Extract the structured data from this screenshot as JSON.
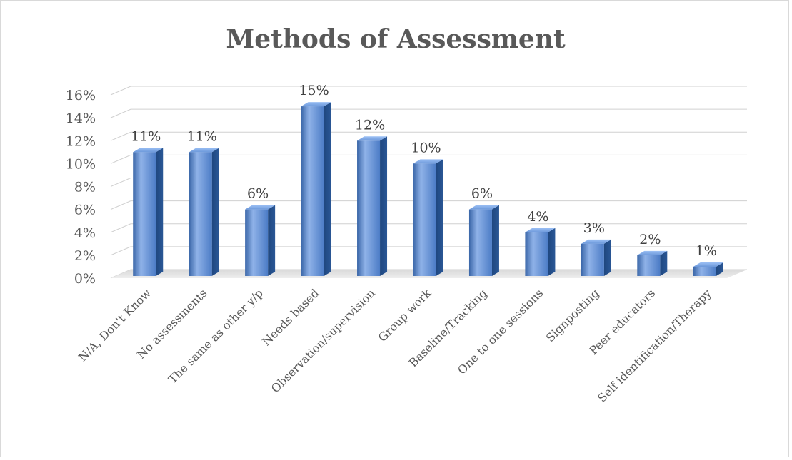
{
  "chart_data": {
    "type": "bar",
    "title": "Methods of Assessment",
    "categories": [
      "N/A, Don't Know",
      "No assessments",
      "The same as other y/p",
      "Needs based",
      "Observation/supervision",
      "Group work",
      "Baseline/Tracking",
      "One to one sessions",
      "Signposting",
      "Peer educators",
      "Self identification/Therapy"
    ],
    "values": [
      11,
      11,
      6,
      15,
      12,
      10,
      6,
      4,
      3,
      2,
      1
    ],
    "value_labels": [
      "11%",
      "11%",
      "6%",
      "15%",
      "12%",
      "10%",
      "6%",
      "4%",
      "3%",
      "2%",
      "1%"
    ],
    "ylim": [
      0,
      16
    ],
    "yticks": [
      0,
      2,
      4,
      6,
      8,
      10,
      12,
      14,
      16
    ],
    "ytick_labels": [
      "0%",
      "2%",
      "4%",
      "6%",
      "8%",
      "10%",
      "12%",
      "14%",
      "16%"
    ],
    "grid": true,
    "bar_color": "#4f81bd",
    "legend": "none"
  }
}
